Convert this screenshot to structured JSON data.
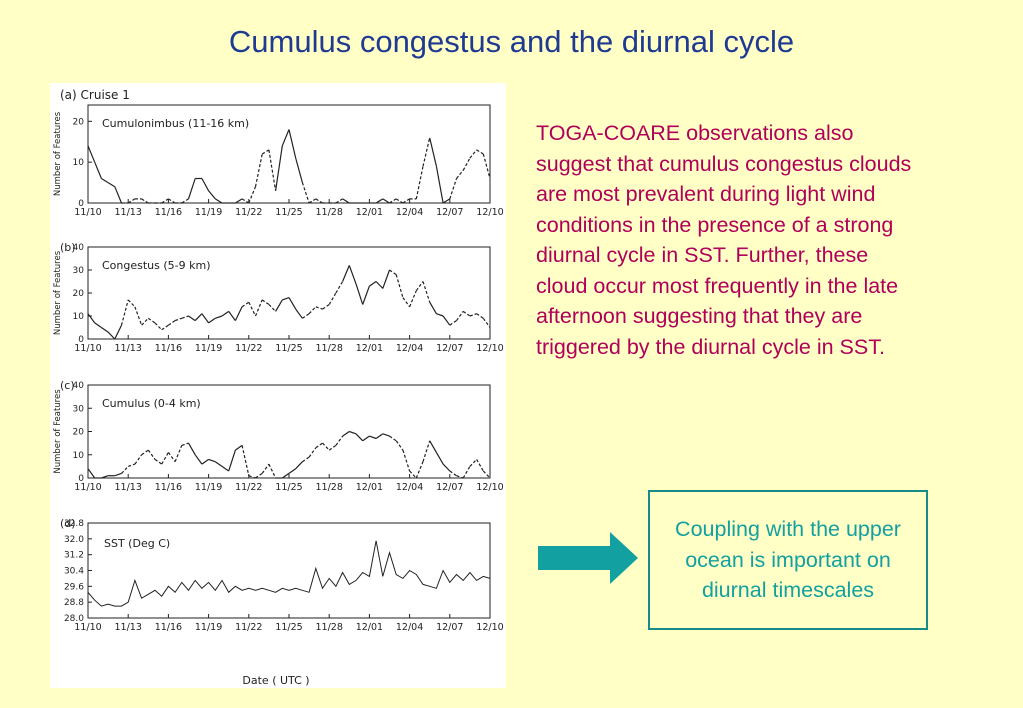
{
  "slide": {
    "title": "Cumulus congestus and the diurnal cycle",
    "body": "TOGA-COARE observations also suggest that cumulus congestus clouds are most prevalent during light wind conditions in the presence of a strong diurnal cycle in SST. Further, these cloud occur most frequently in the late afternoon suggesting that they are triggered by the diurnal cycle in SST.",
    "callout": "Coupling with the upper ocean is important on diurnal timescales",
    "arrow_icon": "right-arrow-icon",
    "colors": {
      "background": "#ffffc6",
      "title": "#1f3a93",
      "body": "#b0005a",
      "callout_text": "#13a0a0",
      "arrow": "#13a0a0"
    }
  },
  "figure": {
    "header": "(a)  Cruise 1",
    "xlabel": "Date ( UTC )"
  },
  "chart_data": [
    {
      "type": "line",
      "panel": "(a)",
      "label": "Cumulonimbus (11-16 km)",
      "ylabel": "Number of Features",
      "x_ticks": [
        "11/10",
        "11/13",
        "11/16",
        "11/19",
        "11/22",
        "11/25",
        "11/28",
        "12/01",
        "12/04",
        "12/07",
        "12/10"
      ],
      "y_ticks": [
        0,
        10,
        20
      ],
      "ylim": [
        0,
        24
      ],
      "x": [
        0,
        0.5,
        1,
        1.5,
        2,
        2.5,
        3,
        3.5,
        4,
        4.5,
        5,
        5.5,
        6,
        6.5,
        7,
        7.5,
        8,
        8.5,
        9,
        9.5,
        10,
        10.5,
        11,
        11.5,
        12,
        12.5,
        13,
        13.5,
        14,
        14.5,
        15,
        15.5,
        16,
        16.5,
        17,
        17.5,
        18,
        18.5,
        19,
        19.5,
        20,
        20.5,
        21,
        21.5,
        22,
        22.5,
        23,
        23.5,
        24,
        24.5,
        25,
        25.5,
        26,
        26.5,
        27,
        27.5,
        28,
        28.5,
        29,
        29.5,
        30
      ],
      "values": [
        14,
        10,
        6,
        5,
        4,
        0,
        0,
        1,
        1,
        0,
        0,
        0,
        1,
        0,
        0,
        1,
        6,
        6,
        3,
        1,
        0,
        0,
        0,
        1,
        0,
        4,
        12,
        13,
        3,
        14,
        18,
        11,
        5,
        0,
        1,
        0,
        0,
        0,
        1,
        0,
        0,
        0,
        0,
        0,
        1,
        0,
        1,
        0,
        1,
        1,
        9,
        16,
        9,
        0,
        1,
        6,
        8,
        11,
        13,
        12,
        6
      ]
    },
    {
      "type": "line",
      "panel": "(b)",
      "label": "Congestus (5-9 km)",
      "ylabel": "Number of Features",
      "x_ticks": [
        "11/10",
        "11/13",
        "11/16",
        "11/19",
        "11/22",
        "11/25",
        "11/28",
        "12/01",
        "12/04",
        "12/07",
        "12/10"
      ],
      "y_ticks": [
        0,
        10,
        20,
        30,
        40
      ],
      "ylim": [
        0,
        40
      ],
      "x": [
        0,
        0.5,
        1,
        1.5,
        2,
        2.5,
        3,
        3.5,
        4,
        4.5,
        5,
        5.5,
        6,
        6.5,
        7,
        7.5,
        8,
        8.5,
        9,
        9.5,
        10,
        10.5,
        11,
        11.5,
        12,
        12.5,
        13,
        13.5,
        14,
        14.5,
        15,
        15.5,
        16,
        16.5,
        17,
        17.5,
        18,
        18.5,
        19,
        19.5,
        20,
        20.5,
        21,
        21.5,
        22,
        22.5,
        23,
        23.5,
        24,
        24.5,
        25,
        25.5,
        26,
        26.5,
        27,
        27.5,
        28,
        28.5,
        29,
        29.5,
        30
      ],
      "values": [
        11,
        7,
        5,
        3,
        0,
        6,
        17,
        14,
        6,
        9,
        7,
        4,
        6,
        8,
        9,
        10,
        8,
        11,
        7,
        9,
        10,
        12,
        8,
        14,
        16,
        10,
        17,
        15,
        12,
        17,
        18,
        13,
        9,
        11,
        14,
        13,
        15,
        20,
        25,
        32,
        24,
        15,
        23,
        25,
        22,
        30,
        28,
        18,
        14,
        21,
        25,
        16,
        11,
        10,
        6,
        8,
        12,
        10,
        11,
        9,
        5
      ]
    },
    {
      "type": "line",
      "panel": "(c)",
      "label": "Cumulus (0-4 km)",
      "ylabel": "Number of Features",
      "x_ticks": [
        "11/10",
        "11/13",
        "11/16",
        "11/19",
        "11/22",
        "11/25",
        "11/28",
        "12/01",
        "12/04",
        "12/07",
        "12/10"
      ],
      "y_ticks": [
        0,
        10,
        20,
        30,
        40
      ],
      "ylim": [
        0,
        40
      ],
      "x": [
        0,
        0.5,
        1,
        1.5,
        2,
        2.5,
        3,
        3.5,
        4,
        4.5,
        5,
        5.5,
        6,
        6.5,
        7,
        7.5,
        8,
        8.5,
        9,
        9.5,
        10,
        10.5,
        11,
        11.5,
        12,
        12.5,
        13,
        13.5,
        14,
        14.5,
        15,
        15.5,
        16,
        16.5,
        17,
        17.5,
        18,
        18.5,
        19,
        19.5,
        20,
        20.5,
        21,
        21.5,
        22,
        22.5,
        23,
        23.5,
        24,
        24.5,
        25,
        25.5,
        26,
        26.5,
        27,
        27.5,
        28,
        28.5,
        29,
        29.5,
        30
      ],
      "values": [
        4,
        0,
        0,
        1,
        1,
        2,
        5,
        6,
        10,
        12,
        8,
        6,
        11,
        7,
        14,
        15,
        10,
        6,
        8,
        7,
        5,
        3,
        12,
        14,
        1,
        0,
        2,
        6,
        0,
        0,
        2,
        4,
        7,
        9,
        13,
        15,
        12,
        14,
        18,
        20,
        19,
        16,
        18,
        17,
        19,
        18,
        16,
        12,
        3,
        0,
        7,
        16,
        11,
        6,
        3,
        1,
        0,
        5,
        8,
        3,
        0
      ]
    },
    {
      "type": "line",
      "panel": "(d)",
      "label": "SST (Deg C)",
      "xlabel": "Date ( UTC )",
      "x_ticks": [
        "11/10",
        "11/13",
        "11/16",
        "11/19",
        "11/22",
        "11/25",
        "11/28",
        "12/01",
        "12/04",
        "12/07",
        "12/10"
      ],
      "y_ticks": [
        28.0,
        28.8,
        29.6,
        30.4,
        31.2,
        32.0,
        32.8
      ],
      "ylim": [
        28.0,
        32.8
      ],
      "x": [
        0,
        0.5,
        1,
        1.5,
        2,
        2.5,
        3,
        3.5,
        4,
        4.5,
        5,
        5.5,
        6,
        6.5,
        7,
        7.5,
        8,
        8.5,
        9,
        9.5,
        10,
        10.5,
        11,
        11.5,
        12,
        12.5,
        13,
        13.5,
        14,
        14.5,
        15,
        15.5,
        16,
        16.5,
        17,
        17.5,
        18,
        18.5,
        19,
        19.5,
        20,
        20.5,
        21,
        21.5,
        22,
        22.5,
        23,
        23.5,
        24,
        24.5,
        25,
        25.5,
        26,
        26.5,
        27,
        27.5,
        28,
        28.5,
        29,
        29.5,
        30
      ],
      "values": [
        29.3,
        28.9,
        28.6,
        28.7,
        28.6,
        28.6,
        28.8,
        29.9,
        29.0,
        29.2,
        29.4,
        29.1,
        29.6,
        29.3,
        29.8,
        29.4,
        29.9,
        29.5,
        29.8,
        29.4,
        29.9,
        29.3,
        29.6,
        29.4,
        29.5,
        29.4,
        29.5,
        29.4,
        29.3,
        29.5,
        29.4,
        29.5,
        29.4,
        29.3,
        30.5,
        29.5,
        30.0,
        29.6,
        30.3,
        29.7,
        29.9,
        30.3,
        30.1,
        31.9,
        30.1,
        31.3,
        30.2,
        30.0,
        30.4,
        30.2,
        29.7,
        29.6,
        29.5,
        30.4,
        29.8,
        30.2,
        29.9,
        30.3,
        29.9,
        30.1,
        30.0
      ]
    }
  ]
}
